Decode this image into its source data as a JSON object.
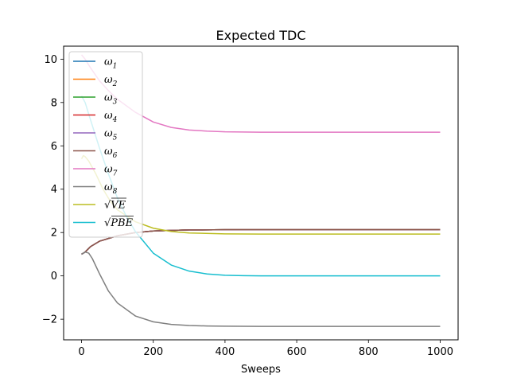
{
  "chart_data": {
    "type": "line",
    "title": "Expected TDC",
    "xlabel": "Sweeps",
    "ylabel": "",
    "xlim": [
      -50,
      1050
    ],
    "ylim": [
      -2.95,
      10.6
    ],
    "xticks": [
      0,
      200,
      400,
      600,
      800,
      1000
    ],
    "yticks": [
      -2,
      0,
      2,
      4,
      6,
      8,
      10
    ],
    "xtick_labels": [
      "0",
      "200",
      "400",
      "600",
      "800",
      "1000"
    ],
    "ytick_labels": [
      "−2",
      "0",
      "2",
      "4",
      "6",
      "8",
      "10"
    ],
    "grid": false,
    "legend_position": "top-left",
    "series": [
      {
        "name": "ω1",
        "color": "#1f77b4",
        "x": [
          0,
          10,
          25,
          50,
          100,
          150,
          200,
          250,
          300,
          400,
          500,
          600,
          700,
          800,
          900,
          1000
        ],
        "y": [
          1.0,
          1.1,
          1.35,
          1.6,
          1.85,
          2.0,
          2.07,
          2.1,
          2.12,
          2.13,
          2.13,
          2.13,
          2.13,
          2.13,
          2.13,
          2.13
        ]
      },
      {
        "name": "ω2",
        "color": "#ff7f0e",
        "x": [
          0,
          10,
          25,
          50,
          100,
          150,
          200,
          250,
          300,
          400,
          500,
          600,
          700,
          800,
          900,
          1000
        ],
        "y": [
          1.0,
          1.1,
          1.35,
          1.6,
          1.85,
          2.0,
          2.07,
          2.1,
          2.12,
          2.13,
          2.13,
          2.13,
          2.13,
          2.13,
          2.13,
          2.13
        ]
      },
      {
        "name": "ω3",
        "color": "#2ca02c",
        "x": [
          0,
          10,
          25,
          50,
          100,
          150,
          200,
          250,
          300,
          400,
          500,
          600,
          700,
          800,
          900,
          1000
        ],
        "y": [
          1.0,
          1.1,
          1.35,
          1.6,
          1.85,
          2.0,
          2.07,
          2.1,
          2.12,
          2.13,
          2.13,
          2.13,
          2.13,
          2.13,
          2.13,
          2.13
        ]
      },
      {
        "name": "ω4",
        "color": "#d62728",
        "x": [
          0,
          10,
          25,
          50,
          100,
          150,
          200,
          250,
          300,
          400,
          500,
          600,
          700,
          800,
          900,
          1000
        ],
        "y": [
          1.0,
          1.1,
          1.35,
          1.6,
          1.85,
          2.0,
          2.07,
          2.1,
          2.12,
          2.13,
          2.13,
          2.13,
          2.13,
          2.13,
          2.13,
          2.13
        ]
      },
      {
        "name": "ω5",
        "color": "#9467bd",
        "x": [
          0,
          10,
          25,
          50,
          100,
          150,
          200,
          250,
          300,
          400,
          500,
          600,
          700,
          800,
          900,
          1000
        ],
        "y": [
          1.0,
          1.1,
          1.35,
          1.6,
          1.85,
          2.0,
          2.07,
          2.1,
          2.12,
          2.13,
          2.13,
          2.13,
          2.13,
          2.13,
          2.13,
          2.13
        ]
      },
      {
        "name": "ω6",
        "color": "#8c564b",
        "x": [
          0,
          10,
          25,
          50,
          100,
          150,
          200,
          250,
          300,
          400,
          500,
          600,
          700,
          800,
          900,
          1000
        ],
        "y": [
          1.0,
          1.1,
          1.35,
          1.6,
          1.85,
          2.0,
          2.07,
          2.1,
          2.12,
          2.13,
          2.13,
          2.13,
          2.13,
          2.13,
          2.13,
          2.13
        ]
      },
      {
        "name": "ω7",
        "color": "#e377c2",
        "x": [
          0,
          10,
          25,
          50,
          75,
          100,
          150,
          200,
          250,
          300,
          350,
          400,
          500,
          600,
          700,
          800,
          900,
          1000
        ],
        "y": [
          10.2,
          10.0,
          9.6,
          9.0,
          8.55,
          8.15,
          7.55,
          7.1,
          6.85,
          6.73,
          6.68,
          6.65,
          6.63,
          6.63,
          6.63,
          6.63,
          6.63,
          6.63
        ]
      },
      {
        "name": "ω8",
        "color": "#7f7f7f",
        "x": [
          0,
          10,
          20,
          30,
          50,
          75,
          100,
          150,
          200,
          250,
          300,
          350,
          400,
          500,
          600,
          700,
          800,
          900,
          1000
        ],
        "y": [
          1.0,
          1.1,
          1.05,
          0.8,
          0.1,
          -0.7,
          -1.25,
          -1.85,
          -2.12,
          -2.24,
          -2.29,
          -2.31,
          -2.32,
          -2.33,
          -2.33,
          -2.33,
          -2.33,
          -2.33,
          -2.33
        ]
      },
      {
        "name": "√VE",
        "color": "#bcbd22",
        "x": [
          0,
          5,
          10,
          20,
          40,
          60,
          80,
          100,
          150,
          200,
          250,
          300,
          400,
          500,
          600,
          700,
          800,
          900,
          1000
        ],
        "y": [
          5.4,
          5.55,
          5.5,
          5.3,
          4.7,
          4.0,
          3.45,
          3.05,
          2.5,
          2.2,
          2.05,
          1.98,
          1.94,
          1.93,
          1.93,
          1.93,
          1.93,
          1.93,
          1.93
        ]
      },
      {
        "name": "√PBE",
        "color": "#17becf",
        "x": [
          0,
          10,
          25,
          50,
          75,
          100,
          125,
          150,
          200,
          250,
          300,
          350,
          400,
          450,
          500,
          600,
          700,
          800,
          900,
          1000
        ],
        "y": [
          8.3,
          8.0,
          7.2,
          5.9,
          4.7,
          3.6,
          2.75,
          2.05,
          1.05,
          0.5,
          0.22,
          0.09,
          0.03,
          0.01,
          0.0,
          0.0,
          0.0,
          0.0,
          0.0,
          0.0
        ]
      }
    ]
  }
}
